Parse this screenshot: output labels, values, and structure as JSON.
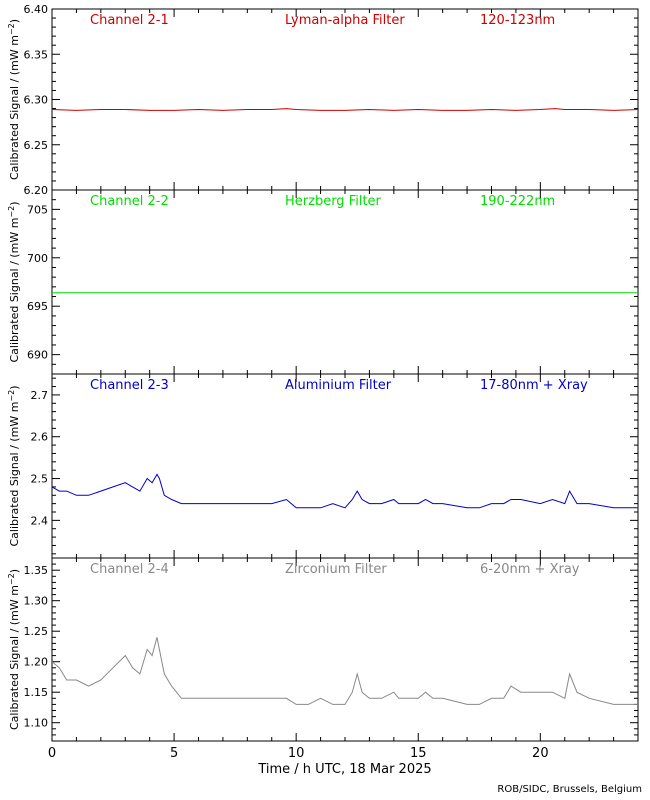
{
  "chart_data": [
    {
      "type": "line",
      "panel": "Channel 2-1",
      "labels": {
        "channel": "Channel 2-1",
        "filter": "Lyman-alpha Filter",
        "band": "120-123nm"
      },
      "color": "#cc0000",
      "ylabel": "Calibrated Signal / (mW m^-2)",
      "ylim": [
        6.2,
        6.4
      ],
      "yticks": [
        "6.20",
        "6.25",
        "6.30",
        "6.35",
        "6.40"
      ],
      "xlim": [
        0,
        24
      ],
      "series": [
        {
          "x": [
            0,
            1,
            2,
            3,
            4,
            5,
            6,
            7,
            8,
            9,
            9.6,
            10,
            11,
            12,
            13,
            14,
            15,
            16,
            17,
            18,
            19,
            20,
            20.6,
            21,
            22,
            23,
            24
          ],
          "values": [
            6.289,
            6.288,
            6.289,
            6.289,
            6.288,
            6.288,
            6.289,
            6.288,
            6.289,
            6.289,
            6.29,
            6.289,
            6.288,
            6.288,
            6.289,
            6.288,
            6.289,
            6.288,
            6.288,
            6.289,
            6.288,
            6.289,
            6.29,
            6.289,
            6.289,
            6.288,
            6.289
          ]
        }
      ]
    },
    {
      "type": "line",
      "panel": "Channel 2-2",
      "labels": {
        "channel": "Channel 2-2",
        "filter": "Herzberg Filter",
        "band": "190-222nm"
      },
      "color": "#00dd00",
      "ylabel": "Calibrated Signal / (mW m^-2)",
      "ylim": [
        688,
        707
      ],
      "yticks": [
        "690",
        "695",
        "700",
        "705"
      ],
      "xlim": [
        0,
        24
      ],
      "series": [
        {
          "x": [
            0,
            6,
            12,
            18,
            24
          ],
          "values": [
            696.4,
            696.4,
            696.4,
            696.4,
            696.4
          ]
        }
      ]
    },
    {
      "type": "line",
      "panel": "Channel 2-3",
      "labels": {
        "channel": "Channel 2-3",
        "filter": "Aluminium Filter",
        "band": "17-80nm + Xray"
      },
      "color": "#0000cc",
      "ylabel": "Calibrated Signal / (mW m^-2)",
      "ylim": [
        2.31,
        2.75
      ],
      "yticks": [
        "2.4",
        "2.5",
        "2.6",
        "2.7"
      ],
      "xlim": [
        0,
        24
      ],
      "series": [
        {
          "x": [
            0,
            0.3,
            0.6,
            1,
            1.5,
            2,
            2.5,
            3,
            3.3,
            3.6,
            3.9,
            4.1,
            4.3,
            4.4,
            4.6,
            4.9,
            5.3,
            6,
            7,
            8,
            9,
            9.6,
            10,
            10.5,
            11,
            11.5,
            12,
            12.3,
            12.5,
            12.7,
            13,
            13.5,
            14,
            14.2,
            14.5,
            15,
            15.3,
            15.6,
            16,
            17,
            17.5,
            18,
            18.5,
            18.8,
            19.2,
            20,
            20.5,
            21,
            21.2,
            21.5,
            22,
            23,
            24
          ],
          "values": [
            2.48,
            2.47,
            2.47,
            2.46,
            2.46,
            2.47,
            2.48,
            2.49,
            2.48,
            2.47,
            2.5,
            2.49,
            2.51,
            2.5,
            2.46,
            2.45,
            2.44,
            2.44,
            2.44,
            2.44,
            2.44,
            2.45,
            2.43,
            2.43,
            2.43,
            2.44,
            2.43,
            2.45,
            2.47,
            2.45,
            2.44,
            2.44,
            2.45,
            2.44,
            2.44,
            2.44,
            2.45,
            2.44,
            2.44,
            2.43,
            2.43,
            2.44,
            2.44,
            2.45,
            2.45,
            2.44,
            2.45,
            2.44,
            2.47,
            2.44,
            2.44,
            2.43,
            2.43
          ]
        }
      ]
    },
    {
      "type": "line",
      "panel": "Channel 2-4",
      "labels": {
        "channel": "Channel 2-4",
        "filter": "Zirconium Filter",
        "band": "6-20nm + Xray"
      },
      "color": "#888888",
      "ylabel": "Calibrated Signal / (mW m^-2)",
      "ylim": [
        1.07,
        1.37
      ],
      "yticks": [
        "1.10",
        "1.15",
        "1.20",
        "1.25",
        "1.30",
        "1.35"
      ],
      "xlim": [
        0,
        24
      ],
      "xticks": [
        "0",
        "5",
        "10",
        "15",
        "20"
      ],
      "xlabel": "Time / h UTC, 18 Mar 2025",
      "series": [
        {
          "x": [
            0,
            0.3,
            0.6,
            1,
            1.5,
            2,
            2.5,
            3,
            3.3,
            3.6,
            3.9,
            4.1,
            4.3,
            4.4,
            4.6,
            4.9,
            5.3,
            6,
            7,
            8,
            9,
            9.6,
            10,
            10.5,
            11,
            11.5,
            12,
            12.3,
            12.5,
            12.7,
            13,
            13.5,
            14,
            14.2,
            14.5,
            15,
            15.3,
            15.6,
            16,
            17,
            17.5,
            18,
            18.5,
            18.8,
            19.2,
            20,
            20.5,
            21,
            21.2,
            21.5,
            22,
            23,
            24
          ],
          "values": [
            1.2,
            1.19,
            1.17,
            1.17,
            1.16,
            1.17,
            1.19,
            1.21,
            1.19,
            1.18,
            1.22,
            1.21,
            1.24,
            1.22,
            1.18,
            1.16,
            1.14,
            1.14,
            1.14,
            1.14,
            1.14,
            1.14,
            1.13,
            1.13,
            1.14,
            1.13,
            1.13,
            1.15,
            1.18,
            1.15,
            1.14,
            1.14,
            1.15,
            1.14,
            1.14,
            1.14,
            1.15,
            1.14,
            1.14,
            1.13,
            1.13,
            1.14,
            1.14,
            1.16,
            1.15,
            1.15,
            1.15,
            1.14,
            1.18,
            1.15,
            1.14,
            1.13,
            1.13
          ]
        }
      ]
    }
  ],
  "footer": {
    "credit": "ROB/SIDC, Brussels, Belgium"
  }
}
